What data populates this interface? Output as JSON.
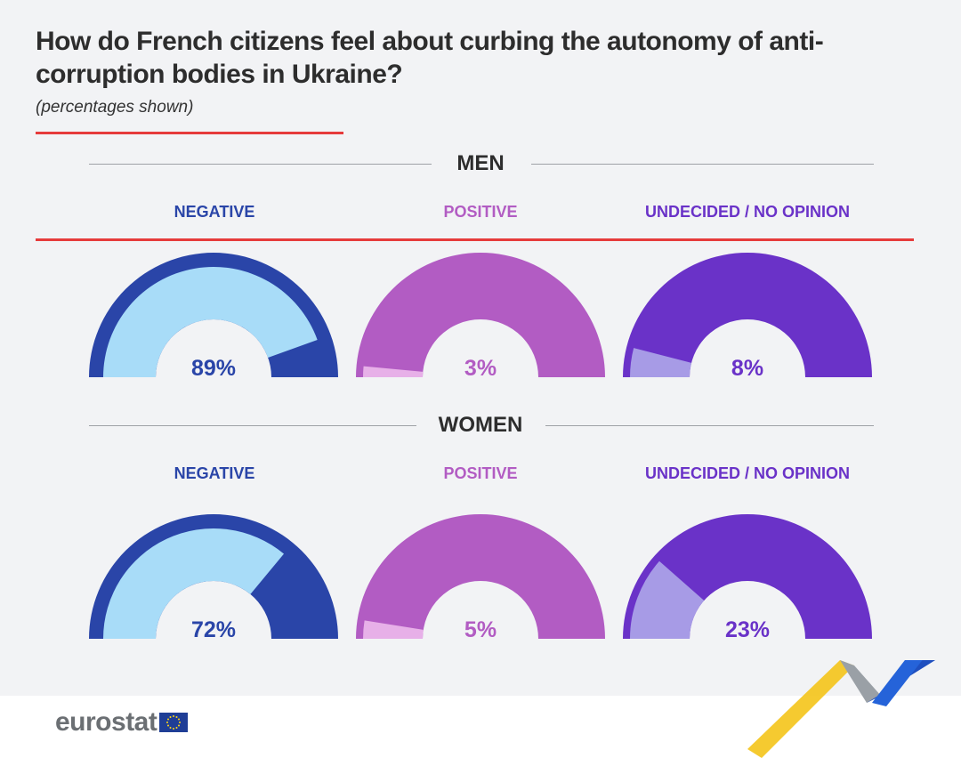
{
  "title": "How do French citizens feel about curbing the autonomy of anti-corruption bodies in Ukraine?",
  "subtitle": "(percentages shown)",
  "colors": {
    "negative_main": "#2a45a8",
    "negative_light": "#a8dcf8",
    "positive_main": "#b25cc3",
    "positive_light": "#e7b0e8",
    "undecided_main": "#6a32c8",
    "undecided_light": "#a79be6",
    "accent_red": "#e63b3b"
  },
  "sections": {
    "men": "MEN",
    "women": "WOMEN"
  },
  "labels": {
    "negative": "NEGATIVE",
    "positive": "POSITIVE",
    "undecided": "UNDECIDED / NO OPINION"
  },
  "chart_data": {
    "type": "gauge",
    "title": "How do French citizens feel about curbing the autonomy of anti-corruption bodies in Ukraine?",
    "subtitle": "(percentages shown)",
    "categories": [
      "NEGATIVE",
      "POSITIVE",
      "UNDECIDED / NO OPINION"
    ],
    "series": [
      {
        "name": "MEN",
        "values": [
          89,
          3,
          8
        ],
        "labels": [
          "89%",
          "3%",
          "8%"
        ]
      },
      {
        "name": "WOMEN",
        "values": [
          72,
          5,
          23
        ],
        "labels": [
          "72%",
          "5%",
          "23%"
        ]
      }
    ]
  },
  "footer": {
    "logo": "eurostat"
  }
}
